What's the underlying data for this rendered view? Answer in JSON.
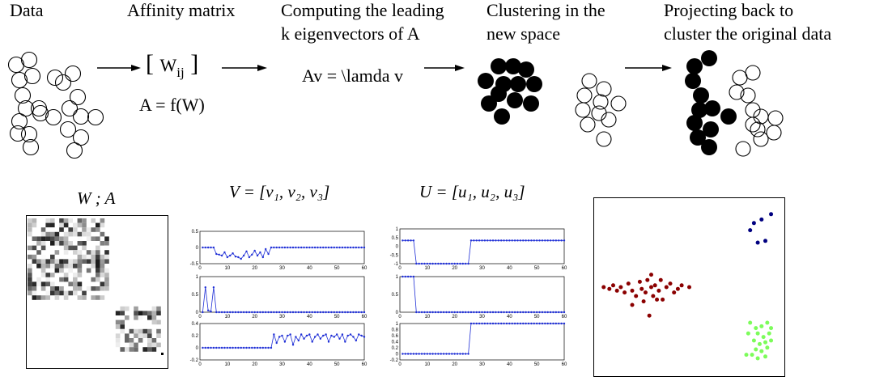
{
  "steps": [
    {
      "title": "Data"
    },
    {
      "title": "Affinity matrix"
    },
    {
      "title": "Computing the leading\nk eigenvectors of A"
    },
    {
      "title": "Clustering in the\nnew space"
    },
    {
      "title": "Projecting back to\ncluster the original data"
    }
  ],
  "formulas": {
    "affinity_w": "W",
    "affinity_sub": "ij",
    "affinity_def": "A = f(W)",
    "eigen_eq": "Av = \\lamda v"
  },
  "panel_titles": {
    "matrix": "W ; A",
    "v_matrix": "V = [v₁, v₂, v₃]",
    "u_matrix": "U = [u₁, u₂, u₃]"
  },
  "colors": {
    "series": "#1f2fd6",
    "cluster_red": "#8b0000",
    "cluster_blue": "#000080",
    "cluster_green": "#7cfc5a",
    "filled_circle": "#000000"
  },
  "chart_data": [
    {
      "type": "line",
      "panel": "V",
      "name": "v1",
      "x": [
        1,
        2,
        3,
        4,
        5,
        6,
        7,
        8,
        9,
        10,
        11,
        12,
        13,
        14,
        15,
        16,
        17,
        18,
        19,
        20,
        21,
        22,
        23,
        24,
        25,
        26,
        27,
        28,
        29,
        30,
        31,
        32,
        33,
        34,
        35,
        36,
        37,
        38,
        39,
        40,
        41,
        42,
        43,
        44,
        45,
        46,
        47,
        48,
        49,
        50,
        51,
        52,
        53,
        54,
        55,
        56,
        57,
        58,
        59,
        60
      ],
      "y": [
        0,
        0,
        0,
        0,
        0,
        -0.2,
        -0.22,
        -0.25,
        -0.15,
        -0.3,
        -0.25,
        -0.18,
        -0.28,
        -0.3,
        -0.35,
        -0.25,
        -0.12,
        -0.3,
        -0.22,
        -0.1,
        -0.25,
        -0.15,
        -0.3,
        -0.05,
        -0.2,
        0,
        0,
        0,
        0,
        0,
        0,
        0,
        0,
        0,
        0,
        0,
        0,
        0,
        0,
        0,
        0,
        0,
        0,
        0,
        0,
        0,
        0,
        0,
        0,
        0,
        0,
        0,
        0,
        0,
        0,
        0,
        0,
        0,
        0,
        0
      ],
      "xlim": [
        0,
        60
      ],
      "ylim": [
        -0.5,
        0.5
      ],
      "xticks": [
        "0",
        "10",
        "20",
        "30",
        "40",
        "50",
        "60"
      ],
      "yticks": [
        "0.5",
        "0",
        "-0.5"
      ]
    },
    {
      "type": "line",
      "panel": "V",
      "name": "v2",
      "x": [
        1,
        2,
        3,
        4,
        5,
        6,
        7,
        8,
        9,
        10,
        11,
        12,
        13,
        14,
        15,
        16,
        17,
        18,
        19,
        20,
        21,
        22,
        23,
        24,
        25,
        26,
        27,
        28,
        29,
        30,
        31,
        32,
        33,
        34,
        35,
        36,
        37,
        38,
        39,
        40,
        41,
        42,
        43,
        44,
        45,
        46,
        47,
        48,
        49,
        50,
        51,
        52,
        53,
        54,
        55,
        56,
        57,
        58,
        59,
        60
      ],
      "y": [
        0,
        0.7,
        0.05,
        0.02,
        0.7,
        0,
        0,
        0,
        0,
        0,
        0,
        0,
        0,
        0,
        0,
        0,
        0,
        0,
        0,
        0,
        0,
        0,
        0,
        0,
        0,
        0,
        0,
        0,
        0,
        0,
        0,
        0,
        0,
        0,
        0,
        0,
        0,
        0,
        0,
        0,
        0,
        0,
        0,
        0,
        0,
        0,
        0,
        0,
        0,
        0,
        0,
        0,
        0,
        0,
        0,
        0,
        0,
        0,
        0,
        0
      ],
      "xlim": [
        0,
        60
      ],
      "ylim": [
        0,
        1
      ],
      "xticks": [
        "0",
        "10",
        "20",
        "30",
        "40",
        "50",
        "60"
      ],
      "yticks": [
        "1",
        "0.5",
        "0"
      ]
    },
    {
      "type": "line",
      "panel": "V",
      "name": "v3",
      "x": [
        1,
        2,
        3,
        4,
        5,
        6,
        7,
        8,
        9,
        10,
        11,
        12,
        13,
        14,
        15,
        16,
        17,
        18,
        19,
        20,
        21,
        22,
        23,
        24,
        25,
        26,
        27,
        28,
        29,
        30,
        31,
        32,
        33,
        34,
        35,
        36,
        37,
        38,
        39,
        40,
        41,
        42,
        43,
        44,
        45,
        46,
        47,
        48,
        49,
        50,
        51,
        52,
        53,
        54,
        55,
        56,
        57,
        58,
        59,
        60
      ],
      "y": [
        0,
        0,
        0,
        0,
        0,
        0,
        0,
        0,
        0,
        0,
        0,
        0,
        0,
        0,
        0,
        0,
        0,
        0,
        0,
        0,
        0,
        0,
        0,
        0,
        0,
        0,
        0.22,
        0.08,
        0.18,
        0.2,
        0.1,
        0.2,
        0.22,
        0.05,
        0.18,
        0.12,
        0.22,
        0.15,
        0.2,
        0.22,
        0.1,
        0.18,
        0.22,
        0.15,
        0.2,
        0.22,
        0.1,
        0.2,
        0.18,
        0.22,
        0.15,
        0.22,
        0.1,
        0.2,
        0.22,
        0.18,
        0.12,
        0.22,
        0.2,
        0.18
      ],
      "xlim": [
        0,
        60
      ],
      "ylim": [
        -0.2,
        0.4
      ],
      "xticks": [
        "0",
        "10",
        "20",
        "30",
        "40",
        "50",
        "60"
      ],
      "yticks": [
        "0.4",
        "0.2",
        "0",
        "-0.2"
      ]
    },
    {
      "type": "line",
      "panel": "U",
      "name": "u1",
      "x": [
        1,
        2,
        3,
        4,
        5,
        6,
        7,
        8,
        9,
        10,
        11,
        12,
        13,
        14,
        15,
        16,
        17,
        18,
        19,
        20,
        21,
        22,
        23,
        24,
        25,
        26,
        27,
        28,
        29,
        30,
        31,
        32,
        33,
        34,
        35,
        36,
        37,
        38,
        39,
        40,
        41,
        42,
        43,
        44,
        45,
        46,
        47,
        48,
        49,
        50,
        51,
        52,
        53,
        54,
        55,
        56,
        57,
        58,
        59,
        60
      ],
      "y": [
        0,
        0,
        0,
        0,
        0,
        -1,
        -1,
        -1,
        -1,
        -1,
        -1,
        -1,
        -1,
        -1,
        -1,
        -1,
        -1,
        -1,
        -1,
        -1,
        -1,
        -1,
        -1,
        -1,
        -1,
        0,
        0,
        0,
        0,
        0,
        0,
        0,
        0,
        0,
        0,
        0,
        0,
        0,
        0,
        0,
        0,
        0,
        0,
        0,
        0,
        0,
        0,
        0,
        0,
        0,
        0,
        0,
        0,
        0,
        0,
        0,
        0,
        0,
        0,
        0
      ],
      "xlim": [
        0,
        60
      ],
      "ylim": [
        -1,
        0.5
      ],
      "xticks": [
        "0",
        "10",
        "20",
        "30",
        "40",
        "50",
        "60"
      ],
      "yticks": [
        "1",
        "0.5",
        "0",
        "-0.5",
        "-1"
      ]
    },
    {
      "type": "line",
      "panel": "U",
      "name": "u2",
      "x": [
        1,
        2,
        3,
        4,
        5,
        6,
        7,
        8,
        9,
        10,
        11,
        12,
        13,
        14,
        15,
        16,
        17,
        18,
        19,
        20,
        21,
        22,
        23,
        24,
        25,
        26,
        27,
        28,
        29,
        30,
        31,
        32,
        33,
        34,
        35,
        36,
        37,
        38,
        39,
        40,
        41,
        42,
        43,
        44,
        45,
        46,
        47,
        48,
        49,
        50,
        51,
        52,
        53,
        54,
        55,
        56,
        57,
        58,
        59,
        60
      ],
      "y": [
        1,
        1,
        1,
        1,
        1,
        0,
        0,
        0,
        0,
        0,
        0,
        0,
        0,
        0,
        0,
        0,
        0,
        0,
        0,
        0,
        0,
        0,
        0,
        0,
        0,
        0,
        0,
        0,
        0,
        0,
        0,
        0,
        0,
        0,
        0,
        0,
        0,
        0,
        0,
        0,
        0,
        0,
        0,
        0,
        0,
        0,
        0,
        0,
        0,
        0,
        0,
        0,
        0,
        0,
        0,
        0,
        0,
        0,
        0,
        0
      ],
      "xlim": [
        0,
        60
      ],
      "ylim": [
        0,
        1
      ],
      "xticks": [
        "0",
        "10",
        "20",
        "30",
        "40",
        "50",
        "60"
      ],
      "yticks": [
        "1",
        "0.5",
        "0"
      ]
    },
    {
      "type": "line",
      "panel": "U",
      "name": "u3",
      "x": [
        1,
        2,
        3,
        4,
        5,
        6,
        7,
        8,
        9,
        10,
        11,
        12,
        13,
        14,
        15,
        16,
        17,
        18,
        19,
        20,
        21,
        22,
        23,
        24,
        25,
        26,
        27,
        28,
        29,
        30,
        31,
        32,
        33,
        34,
        35,
        36,
        37,
        38,
        39,
        40,
        41,
        42,
        43,
        44,
        45,
        46,
        47,
        48,
        49,
        50,
        51,
        52,
        53,
        54,
        55,
        56,
        57,
        58,
        59,
        60
      ],
      "y": [
        0,
        0,
        0,
        0,
        0,
        0,
        0,
        0,
        0,
        0,
        0,
        0,
        0,
        0,
        0,
        0,
        0,
        0,
        0,
        0,
        0,
        0,
        0,
        0,
        0,
        1,
        1,
        1,
        1,
        1,
        1,
        1,
        1,
        1,
        1,
        1,
        1,
        1,
        1,
        1,
        1,
        1,
        1,
        1,
        1,
        1,
        1,
        1,
        1,
        1,
        1,
        1,
        1,
        1,
        1,
        1,
        1,
        1,
        1,
        1
      ],
      "xlim": [
        0,
        60
      ],
      "ylim": [
        -0.2,
        1
      ],
      "xticks": [
        "0",
        "10",
        "20",
        "30",
        "40",
        "50",
        "60"
      ],
      "yticks": [
        "1",
        "0.8",
        "0.6",
        "0.4",
        "0.2",
        "0",
        "-0.2"
      ]
    },
    {
      "type": "scatter",
      "panel": "embedding",
      "series": [
        {
          "color": "#8b0000",
          "points": [
            [
              0.05,
              0.5
            ],
            [
              0.08,
              0.51
            ],
            [
              0.1,
              0.49
            ],
            [
              0.12,
              0.52
            ],
            [
              0.14,
              0.5
            ],
            [
              0.16,
              0.53
            ],
            [
              0.18,
              0.48
            ],
            [
              0.2,
              0.52
            ],
            [
              0.22,
              0.55
            ],
            [
              0.24,
              0.47
            ],
            [
              0.25,
              0.51
            ],
            [
              0.27,
              0.53
            ],
            [
              0.28,
              0.46
            ],
            [
              0.3,
              0.5
            ],
            [
              0.31,
              0.55
            ],
            [
              0.32,
              0.49
            ],
            [
              0.34,
              0.52
            ],
            [
              0.35,
              0.46
            ],
            [
              0.36,
              0.57
            ],
            [
              0.38,
              0.5
            ],
            [
              0.4,
              0.48
            ],
            [
              0.42,
              0.53
            ],
            [
              0.44,
              0.51
            ],
            [
              0.46,
              0.49
            ],
            [
              0.5,
              0.5
            ],
            [
              0.26,
              0.58
            ],
            [
              0.3,
              0.43
            ],
            [
              0.33,
              0.57
            ],
            [
              0.29,
              0.66
            ],
            [
              0.2,
              0.6
            ]
          ]
        },
        {
          "color": "#000080",
          "points": [
            [
              0.82,
              0.18
            ],
            [
              0.84,
              0.14
            ],
            [
              0.88,
              0.12
            ],
            [
              0.93,
              0.09
            ],
            [
              0.86,
              0.25
            ],
            [
              0.9,
              0.24
            ]
          ]
        },
        {
          "color": "#7cfc5a",
          "points": [
            [
              0.82,
              0.7
            ],
            [
              0.85,
              0.73
            ],
            [
              0.88,
              0.72
            ],
            [
              0.91,
              0.7
            ],
            [
              0.86,
              0.76
            ],
            [
              0.89,
              0.78
            ],
            [
              0.92,
              0.76
            ],
            [
              0.84,
              0.8
            ],
            [
              0.87,
              0.82
            ],
            [
              0.9,
              0.81
            ],
            [
              0.93,
              0.8
            ],
            [
              0.85,
              0.85
            ],
            [
              0.88,
              0.86
            ],
            [
              0.91,
              0.84
            ],
            [
              0.83,
              0.88
            ],
            [
              0.8,
              0.88
            ],
            [
              0.86,
              0.9
            ],
            [
              0.9,
              0.89
            ],
            [
              0.93,
              0.73
            ],
            [
              0.81,
              0.76
            ]
          ]
        }
      ]
    }
  ]
}
